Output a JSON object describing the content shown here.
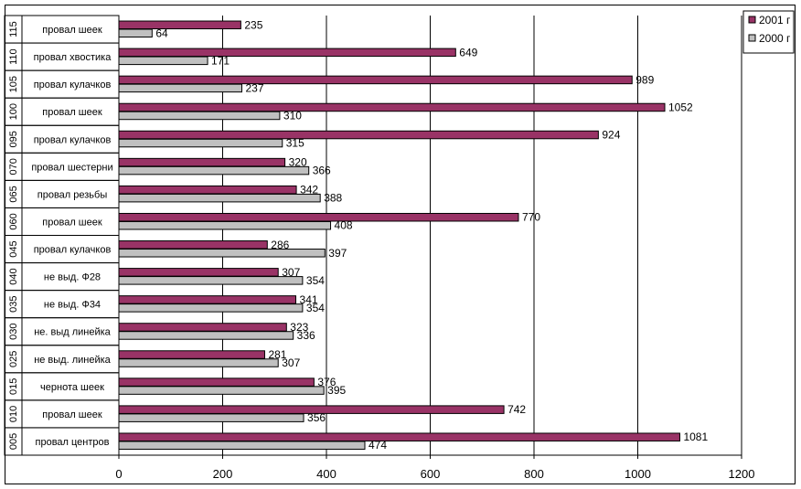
{
  "chart_data": {
    "type": "bar",
    "orientation": "horizontal",
    "title": "",
    "xlabel": "",
    "ylabel": "",
    "xlim": [
      0,
      1200
    ],
    "xticks": [
      0,
      200,
      400,
      600,
      800,
      1000,
      1200
    ],
    "grid": true,
    "legend_position": "top-right",
    "categories": [
      {
        "code": "115",
        "label": "провал шеек"
      },
      {
        "code": "110",
        "label": "провал хвостика"
      },
      {
        "code": "105",
        "label": "провал кулачков"
      },
      {
        "code": "100",
        "label": "провал шеек"
      },
      {
        "code": "095",
        "label": "провал кулачков"
      },
      {
        "code": "070",
        "label": "провал шестерни"
      },
      {
        "code": "065",
        "label": "провал резьбы"
      },
      {
        "code": "060",
        "label": "провал шеек"
      },
      {
        "code": "045",
        "label": "провал кулачков"
      },
      {
        "code": "040",
        "label": "не выд. Ф28"
      },
      {
        "code": "035",
        "label": "не выд. Ф34"
      },
      {
        "code": "030",
        "label": "не. выд линейка"
      },
      {
        "code": "025",
        "label": "не выд. линейка"
      },
      {
        "code": "015",
        "label": "чернота шеек"
      },
      {
        "code": "010",
        "label": "провал шеек"
      },
      {
        "code": "005",
        "label": "провал центров"
      }
    ],
    "series": [
      {
        "name": "2001 г",
        "color": "#993366",
        "values": [
          235,
          649,
          989,
          1052,
          924,
          320,
          342,
          770,
          286,
          307,
          341,
          323,
          281,
          376,
          742,
          1081
        ]
      },
      {
        "name": "2000 г",
        "color": "#c0c0c0",
        "values": [
          64,
          171,
          237,
          310,
          315,
          366,
          388,
          408,
          397,
          354,
          354,
          336,
          307,
          395,
          356,
          474
        ]
      }
    ]
  }
}
